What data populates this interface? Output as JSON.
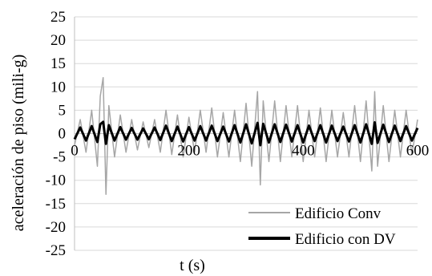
{
  "chart_data": {
    "type": "line",
    "title": "",
    "xlabel": "t (s)",
    "ylabel": "aceleración de piso (mili-g)",
    "xlim": [
      0,
      600
    ],
    "ylim": [
      -25,
      25
    ],
    "x_ticks": [
      "0",
      "200",
      "400",
      "600"
    ],
    "x_tick_values": [
      0,
      200,
      400,
      600
    ],
    "y_ticks": [
      "25",
      "20",
      "15",
      "10",
      "5",
      "0",
      "-5",
      "-10",
      "-15",
      "-20",
      "-25"
    ],
    "y_tick_values": [
      25,
      20,
      15,
      10,
      5,
      0,
      -5,
      -10,
      -15,
      -20,
      -25
    ],
    "grid": "horizontal",
    "legend_position": "bottom-right",
    "series": [
      {
        "name": "Edificio Conv",
        "color": "#a6a6a6",
        "x": [
          0,
          10,
          20,
          30,
          40,
          45,
          50,
          55,
          60,
          70,
          80,
          90,
          100,
          110,
          120,
          130,
          140,
          150,
          160,
          170,
          180,
          190,
          200,
          210,
          220,
          230,
          240,
          250,
          260,
          270,
          280,
          290,
          300,
          310,
          320,
          325,
          330,
          340,
          350,
          360,
          370,
          380,
          390,
          400,
          410,
          420,
          430,
          440,
          450,
          460,
          470,
          480,
          490,
          500,
          510,
          520,
          525,
          530,
          540,
          550,
          560,
          570,
          580,
          590,
          600
        ],
        "y": [
          -2.5,
          3,
          -4,
          5,
          -7,
          8,
          12,
          -13,
          6,
          -5,
          4,
          -4,
          3,
          -3.5,
          2.5,
          -3,
          3,
          -4,
          5,
          -4.5,
          4,
          -5,
          3.5,
          -4,
          5,
          -4,
          5.5,
          -5,
          4.5,
          -5,
          5,
          -6,
          6.5,
          -7,
          9,
          -11,
          7,
          -6,
          7,
          -6,
          6,
          -5,
          6,
          -6,
          5,
          -5,
          5.5,
          -6,
          5,
          -5,
          4.5,
          -5,
          6,
          -6,
          7,
          -8,
          9,
          -7,
          6,
          -6,
          5,
          -5,
          5,
          -4.5,
          3
        ]
      },
      {
        "name": "Edificio con DV",
        "color": "#000000",
        "x": [
          0,
          10,
          20,
          30,
          40,
          45,
          50,
          55,
          60,
          70,
          80,
          90,
          100,
          110,
          120,
          130,
          140,
          150,
          160,
          170,
          180,
          190,
          200,
          210,
          220,
          230,
          240,
          250,
          260,
          270,
          280,
          290,
          300,
          310,
          320,
          325,
          330,
          340,
          350,
          360,
          370,
          380,
          390,
          400,
          410,
          420,
          430,
          440,
          450,
          460,
          470,
          480,
          490,
          500,
          510,
          520,
          525,
          530,
          540,
          550,
          560,
          570,
          580,
          590,
          600
        ],
        "y": [
          -1.2,
          1.3,
          -1.5,
          1.6,
          -1.8,
          2,
          2.5,
          -2.2,
          1.8,
          -1.5,
          1.4,
          -1.3,
          1.2,
          -1.3,
          1.1,
          -1.2,
          1.3,
          -1.4,
          1.7,
          -1.6,
          1.5,
          -1.7,
          1.4,
          -1.5,
          1.6,
          -1.5,
          1.7,
          -1.6,
          1.5,
          -1.7,
          1.8,
          -1.9,
          2,
          -2.1,
          2.3,
          -2.5,
          2.1,
          -1.9,
          2,
          -1.8,
          1.9,
          -1.7,
          1.8,
          -1.9,
          1.7,
          -1.6,
          1.8,
          -1.9,
          1.7,
          -1.6,
          1.5,
          -1.7,
          1.8,
          -1.9,
          2,
          -2.2,
          2.4,
          -2,
          1.9,
          -1.8,
          1.7,
          -1.6,
          1.6,
          -1.5,
          1.2
        ]
      }
    ]
  }
}
